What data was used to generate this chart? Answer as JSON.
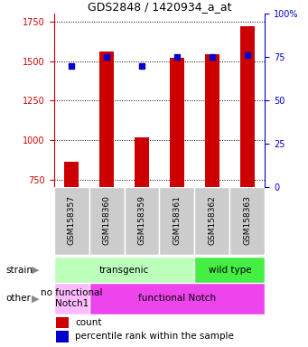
{
  "title": "GDS2848 / 1420934_a_at",
  "samples": [
    "GSM158357",
    "GSM158360",
    "GSM158359",
    "GSM158361",
    "GSM158362",
    "GSM158363"
  ],
  "counts": [
    860,
    1560,
    1015,
    1520,
    1545,
    1720
  ],
  "percentiles": [
    70,
    75,
    70,
    75,
    75,
    76
  ],
  "ylim_left": [
    700,
    1800
  ],
  "ylim_right": [
    0,
    100
  ],
  "yticks_left": [
    750,
    1000,
    1250,
    1500,
    1750
  ],
  "yticks_right": [
    0,
    25,
    50,
    75,
    100
  ],
  "bar_color": "#cc0000",
  "dot_color": "#0000cc",
  "bar_width": 0.4,
  "strain_groups": [
    {
      "label": "transgenic",
      "cols": [
        0,
        3
      ],
      "color": "#bbffbb"
    },
    {
      "label": "wild type",
      "cols": [
        4,
        5
      ],
      "color": "#44ee44"
    }
  ],
  "other_groups": [
    {
      "label": "no functional\nNotch1",
      "cols": [
        0,
        0
      ],
      "color": "#ffbbff"
    },
    {
      "label": "functional Notch",
      "cols": [
        1,
        5
      ],
      "color": "#ee44ee"
    }
  ],
  "strain_label": "strain",
  "other_label": "other",
  "legend_count_label": "count",
  "legend_pct_label": "percentile rank within the sample",
  "left_axis_color": "#cc0000",
  "right_axis_color": "#0000cc",
  "title_color": "#000000",
  "gray_box_color": "#cccccc",
  "box_edge_color": "#aaaaaa"
}
